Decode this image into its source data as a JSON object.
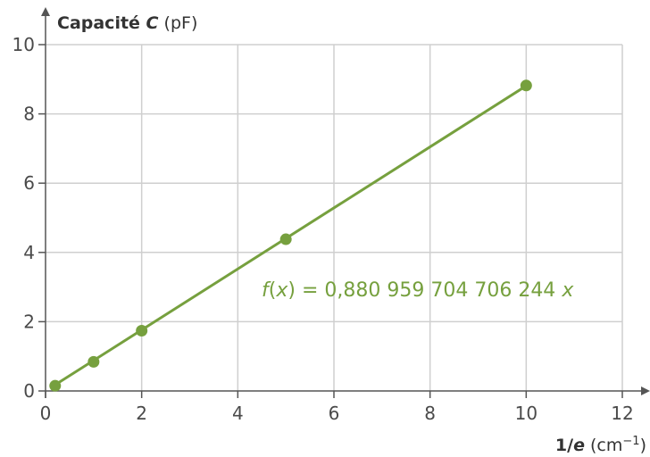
{
  "chart_data": {
    "type": "scatter",
    "title": "",
    "ylabel": {
      "prefix": "Capacité ",
      "var": "C",
      "unit": " (pF)"
    },
    "xlabel": {
      "prefix": "1/",
      "var": "e",
      "unit_base": " (cm",
      "unit_exp": "−1",
      "unit_end": ")"
    },
    "xlim": [
      0,
      12
    ],
    "ylim": [
      0,
      10
    ],
    "x_ticks": [
      "0",
      "2",
      "4",
      "6",
      "8",
      "10",
      "12"
    ],
    "y_ticks": [
      "0",
      "2",
      "4",
      "6",
      "8",
      "10"
    ],
    "grid": true,
    "series": [
      {
        "points": [
          {
            "x": 0.2,
            "y": 0.15
          },
          {
            "x": 1,
            "y": 0.84
          },
          {
            "x": 2,
            "y": 1.74
          },
          {
            "x": 5,
            "y": 4.38
          },
          {
            "x": 10,
            "y": 8.82
          }
        ]
      }
    ],
    "fit": {
      "slope": 0.880959704706244,
      "x_from": 0.2,
      "x_to": 10,
      "label_f": "f",
      "label_x": "x",
      "label_rest": " = 0,880 959 704 706 244 "
    },
    "colors": {
      "series": "#76a03e",
      "grid": "#cfcfcf",
      "axis": "#555555"
    }
  }
}
